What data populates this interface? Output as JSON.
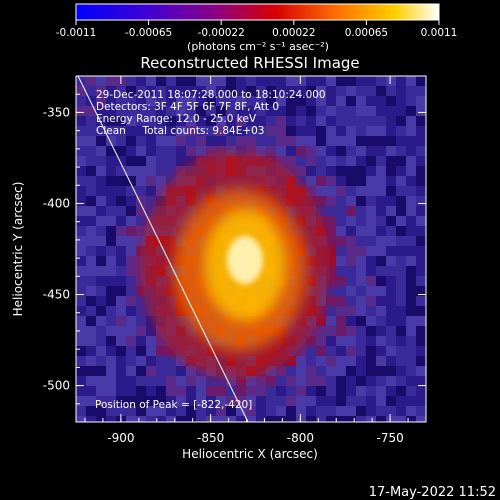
{
  "colorbar": {
    "ticks": [
      "-0.0011",
      "-0.00065",
      "-0.00022",
      "0.00022",
      "0.00065",
      "0.0011"
    ],
    "unit_label": "(photons cm⁻² s⁻¹ asec⁻²)"
  },
  "title": "Reconstructed RHESSI Image",
  "info": {
    "line1": "29-Dec-2011 18:07:28.000 to 18:10:24.000",
    "line2": "Detectors: 3F 4F 5F 6F 7F 8F, Att 0",
    "line3": "Energy Range: 12.0 - 25.0 keV",
    "line4": "Clean     Total counts: 9.84E+03"
  },
  "peak_label": "Position of Peak = [-822,-420]",
  "axes": {
    "xlabel": "Heliocentric X (arcsec)",
    "ylabel": "Heliocentric Y (arcsec)",
    "xticks": [
      "-900",
      "-850",
      "-800",
      "-750"
    ],
    "yticks": [
      "-350",
      "-400",
      "-450",
      "-500"
    ]
  },
  "footer_timestamp": "17-May-2022 11:52",
  "colors": {
    "background": "#000000",
    "axis": "#ffffff"
  }
}
